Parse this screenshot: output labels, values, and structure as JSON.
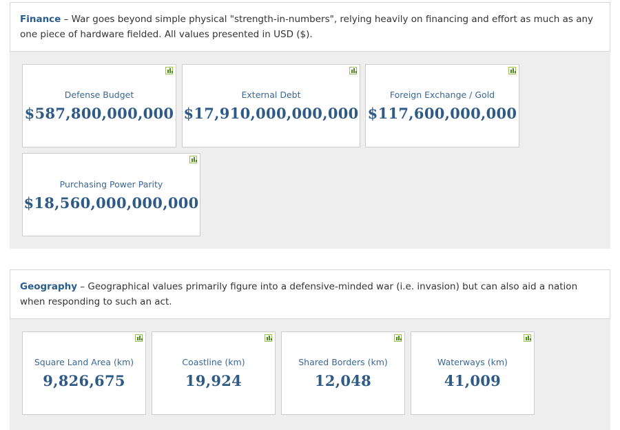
{
  "finance": {
    "title": "Finance",
    "description": " – War goes beyond simple physical \"strength-in-numbers\", relying heavily on financing and effort as much as any one piece of hardware fielded. All values presented in USD ($).",
    "cards": [
      {
        "label": "Defense Budget",
        "value": "$587,800,000,000",
        "icon": "bar-chart-icon"
      },
      {
        "label": "External Debt",
        "value": "$17,910,000,000,000",
        "icon": "bar-chart-icon"
      },
      {
        "label": "Foreign Exchange / Gold",
        "value": "$117,600,000,000",
        "icon": "bar-chart-icon"
      },
      {
        "label": "Purchasing Power Parity",
        "value": "$18,560,000,000,000",
        "icon": "bar-chart-icon"
      }
    ]
  },
  "geography": {
    "title": "Geography",
    "description": " – Geographical values primarily figure into a defensive-minded war (i.e. invasion) but can also aid a nation when responding to such an act.",
    "cards": [
      {
        "label": "Square Land Area (km)",
        "value": "9,826,675",
        "icon": "bar-chart-icon"
      },
      {
        "label": "Coastline (km)",
        "value": "19,924",
        "icon": "bar-chart-icon"
      },
      {
        "label": "Shared Borders (km)",
        "value": "12,048",
        "icon": "bar-chart-icon"
      },
      {
        "label": "Waterways (km)",
        "value": "41,009",
        "icon": "bar-chart-icon"
      }
    ]
  },
  "colors": {
    "accent": "#2a5c8c",
    "value_text": "#2f5a86",
    "panel_bg": "#eeeeee",
    "icon_green": "#4a8b1a"
  }
}
